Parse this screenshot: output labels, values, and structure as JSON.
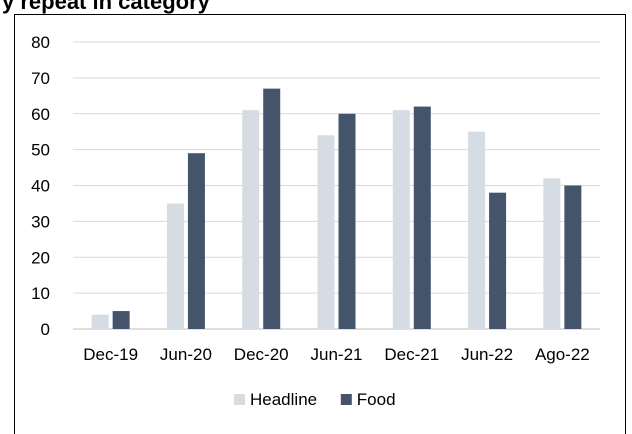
{
  "title": "y repeat in category",
  "chart_data": {
    "type": "bar",
    "categories": [
      "Dec-19",
      "Jun-20",
      "Dec-20",
      "Jun-21",
      "Dec-21",
      "Jun-22",
      "Ago-22"
    ],
    "series": [
      {
        "name": "Headline",
        "values": [
          4,
          35,
          61,
          54,
          61,
          55,
          42
        ],
        "color": "#d6dce4"
      },
      {
        "name": "Food",
        "values": [
          5,
          49,
          67,
          60,
          62,
          38,
          40
        ],
        "color": "#44546a"
      }
    ],
    "ylim": [
      0,
      80
    ],
    "yticks": [
      0,
      10,
      20,
      30,
      40,
      50,
      60,
      70,
      80
    ],
    "grid": true,
    "legend": "bottom"
  }
}
